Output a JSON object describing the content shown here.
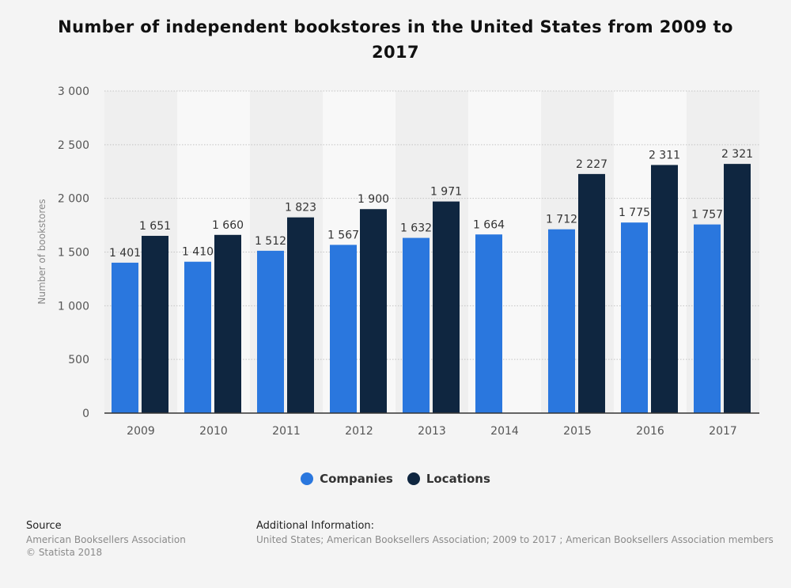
{
  "chart_data": {
    "type": "bar",
    "title": "Number of independent bookstores in the United States from 2009 to 2017",
    "ylabel": "Number of bookstores",
    "xlabel": "",
    "categories": [
      "2009",
      "2010",
      "2011",
      "2012",
      "2013",
      "2014",
      "2015",
      "2016",
      "2017"
    ],
    "series": [
      {
        "name": "Companies",
        "color": "#2a77de",
        "values": [
          1401,
          1410,
          1512,
          1567,
          1632,
          1664,
          1712,
          1775,
          1757
        ],
        "labels": [
          "1 401",
          "1 410",
          "1 512",
          "1 567",
          "1 632",
          "1 664",
          "1 712",
          "1 775",
          "1 757"
        ]
      },
      {
        "name": "Locations",
        "color": "#0f2640",
        "values": [
          1651,
          1660,
          1823,
          1900,
          1971,
          null,
          2227,
          2311,
          2321
        ],
        "labels": [
          "1 651",
          "1 660",
          "1 823",
          "1 900",
          "1 971",
          "",
          "2 227",
          "2 311",
          "2 321"
        ]
      }
    ],
    "ylim": [
      0,
      3000
    ],
    "yticks": [
      0,
      500,
      1000,
      1500,
      2000,
      2500,
      3000
    ],
    "ytick_labels": [
      "0",
      "500",
      "1 000",
      "1 500",
      "2 000",
      "2 500",
      "3 000"
    ],
    "grid": true,
    "legend_position": "bottom"
  },
  "footer": {
    "source_heading": "Source",
    "source_line1": "American Booksellers Association",
    "source_line2": "© Statista 2018",
    "info_heading": "Additional Information:",
    "info_text": "United States; American Booksellers Association; 2009 to 2017 ; American Booksellers Association members"
  }
}
